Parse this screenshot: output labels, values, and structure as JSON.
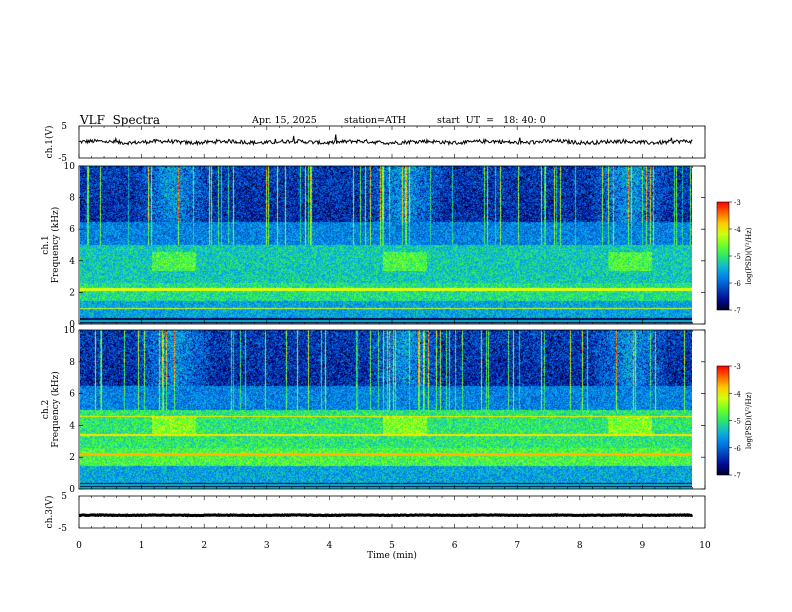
{
  "header": {
    "title": "VLF  Spectra",
    "date": "Apr. 15, 2025",
    "station": "station=ATH",
    "start": "start  UT  =   18: 40: 0"
  },
  "chart_data": [
    {
      "type": "line",
      "panel": "ch1-waveform",
      "ylabel": "ch.1(V)",
      "ylim": [
        -5,
        5
      ],
      "yticks": [
        "5",
        "-5"
      ],
      "xlim": [
        0,
        10
      ],
      "series": [
        {
          "values_note": "",
          "mean": 0.0,
          "amplitude": 0.6
        }
      ],
      "color": "#000000"
    },
    {
      "type": "heatmap",
      "panel": "ch1-spectrogram",
      "ylabel": "ch.1\nFrequency  (kHz)",
      "ylim": [
        0,
        10
      ],
      "yticks": [
        "0",
        "2",
        "4",
        "6",
        "8",
        "10"
      ],
      "xlim": [
        0,
        9.8
      ],
      "colorbar": {
        "label": "log(PSD)(V²/Hz)",
        "range": [
          -7,
          -3
        ],
        "ticks": [
          "-3",
          "-4",
          "-5",
          "-6",
          "-7"
        ]
      },
      "bright_bursts_min": [
        1.5,
        5.2,
        8.8
      ]
    },
    {
      "type": "heatmap",
      "panel": "ch2-spectrogram",
      "ylabel": "ch.2\nFrequency  (kHz)",
      "ylim": [
        0,
        10
      ],
      "yticks": [
        "0",
        "2",
        "4",
        "6",
        "8",
        "10"
      ],
      "xlim": [
        0,
        9.8
      ],
      "colorbar": {
        "label": "log(PSD)(V²/Hz)",
        "range": [
          -7,
          -3
        ],
        "ticks": [
          "-3",
          "-4",
          "-5",
          "-6",
          "-7"
        ]
      },
      "bright_bursts_min": [
        1.5,
        5.2,
        8.8
      ]
    },
    {
      "type": "line",
      "panel": "ch3-waveform",
      "ylabel": "ch.3(V)",
      "ylim": [
        -5,
        5
      ],
      "yticks": [
        "5",
        "-5"
      ],
      "xlim": [
        0,
        10
      ],
      "series": [
        {
          "mean": -1.0,
          "amplitude": 0.1
        }
      ],
      "color": "#000000"
    }
  ],
  "x_axis": {
    "label": "Time  (min)",
    "ticks": [
      "0",
      "1",
      "2",
      "3",
      "4",
      "5",
      "6",
      "7",
      "8",
      "9",
      "10"
    ],
    "range": [
      0,
      10
    ]
  },
  "colors": {
    "axis": "#000000",
    "trace": "#000000"
  }
}
